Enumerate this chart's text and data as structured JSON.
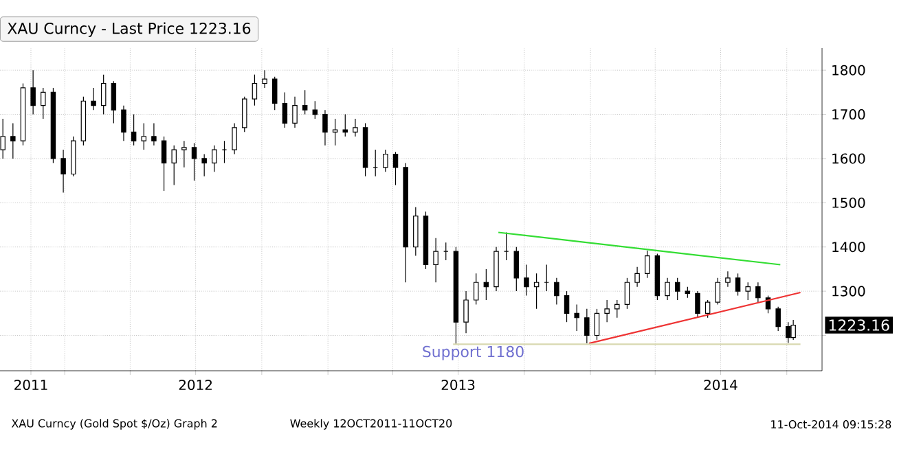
{
  "chart_data": {
    "type": "candlestick",
    "legend": "top left",
    "grid": true,
    "ylim": [
      1120,
      1850
    ],
    "yticks": [
      {
        "value": 1200,
        "label": null
      },
      1300,
      1400,
      1500,
      1600,
      1700,
      1800
    ],
    "xlim": [
      "2011-10-03",
      "2014-11-19"
    ],
    "xticks": [
      {
        "value": "2011-11-15",
        "label": "2011"
      },
      {
        "value": "2012-01-01",
        "label": null
      },
      {
        "value": "2012-04-01",
        "label": null
      },
      {
        "value": "2012-07-01",
        "label": "2012"
      },
      {
        "value": "2012-10-01",
        "label": null
      },
      {
        "value": "2013-01-01",
        "label": null
      },
      {
        "value": "2013-04-01",
        "label": null
      },
      {
        "value": "2013-07-01",
        "label": "2013"
      },
      {
        "value": "2013-10-01",
        "label": null
      },
      {
        "value": "2014-01-01",
        "label": null
      },
      {
        "value": "2014-04-01",
        "label": null
      },
      {
        "value": "2014-07-01",
        "label": "2014"
      },
      {
        "value": "2014-10-01",
        "label": null
      }
    ],
    "series": [
      {
        "name": "XAU Curncy - Last Price 1223.16",
        "color": "#000000",
        "x": [
          "2011-10-07",
          "2011-10-21",
          "2011-11-04",
          "2011-11-18",
          "2011-12-02",
          "2011-12-16",
          "2011-12-30",
          "2012-01-13",
          "2012-01-27",
          "2012-02-10",
          "2012-02-24",
          "2012-03-09",
          "2012-03-23",
          "2012-04-06",
          "2012-04-20",
          "2012-05-04",
          "2012-05-18",
          "2012-06-01",
          "2012-06-15",
          "2012-06-29",
          "2012-07-13",
          "2012-07-27",
          "2012-08-10",
          "2012-08-24",
          "2012-09-07",
          "2012-09-21",
          "2012-10-05",
          "2012-10-19",
          "2012-11-02",
          "2012-11-16",
          "2012-11-30",
          "2012-12-14",
          "2012-12-28",
          "2013-01-11",
          "2013-01-25",
          "2013-02-08",
          "2013-02-22",
          "2013-03-08",
          "2013-03-22",
          "2013-04-05",
          "2013-04-19",
          "2013-05-03",
          "2013-05-17",
          "2013-05-31",
          "2013-06-14",
          "2013-06-28",
          "2013-07-12",
          "2013-07-26",
          "2013-08-09",
          "2013-08-23",
          "2013-09-06",
          "2013-09-20",
          "2013-10-04",
          "2013-10-18",
          "2013-11-01",
          "2013-11-15",
          "2013-11-29",
          "2013-12-13",
          "2013-12-27",
          "2014-01-10",
          "2014-01-24",
          "2014-02-07",
          "2014-02-21",
          "2014-03-07",
          "2014-03-21",
          "2014-04-04",
          "2014-04-18",
          "2014-05-02",
          "2014-05-16",
          "2014-05-30",
          "2014-06-13",
          "2014-06-27",
          "2014-07-11",
          "2014-07-25",
          "2014-08-08",
          "2014-08-22",
          "2014-09-05",
          "2014-09-19",
          "2014-10-03",
          "2014-10-10"
        ],
        "ohlc": [
          [
            1620,
            1690,
            1600,
            1650
          ],
          [
            1650,
            1680,
            1600,
            1640
          ],
          [
            1640,
            1770,
            1630,
            1760
          ],
          [
            1760,
            1800,
            1700,
            1720
          ],
          [
            1720,
            1760,
            1690,
            1750
          ],
          [
            1750,
            1760,
            1590,
            1600
          ],
          [
            1600,
            1620,
            1523,
            1565
          ],
          [
            1565,
            1650,
            1560,
            1640
          ],
          [
            1640,
            1740,
            1630,
            1730
          ],
          [
            1730,
            1760,
            1710,
            1720
          ],
          [
            1720,
            1790,
            1700,
            1770
          ],
          [
            1770,
            1775,
            1680,
            1710
          ],
          [
            1710,
            1720,
            1640,
            1660
          ],
          [
            1660,
            1700,
            1630,
            1640
          ],
          [
            1640,
            1680,
            1620,
            1650
          ],
          [
            1650,
            1680,
            1630,
            1640
          ],
          [
            1640,
            1650,
            1527,
            1590
          ],
          [
            1590,
            1630,
            1540,
            1620
          ],
          [
            1620,
            1640,
            1580,
            1625
          ],
          [
            1625,
            1635,
            1550,
            1600
          ],
          [
            1600,
            1610,
            1560,
            1590
          ],
          [
            1590,
            1630,
            1570,
            1620
          ],
          [
            1620,
            1640,
            1590,
            1620
          ],
          [
            1620,
            1680,
            1610,
            1670
          ],
          [
            1670,
            1740,
            1660,
            1735
          ],
          [
            1735,
            1790,
            1720,
            1770
          ],
          [
            1770,
            1800,
            1760,
            1780
          ],
          [
            1780,
            1785,
            1710,
            1725
          ],
          [
            1725,
            1750,
            1670,
            1680
          ],
          [
            1680,
            1740,
            1670,
            1720
          ],
          [
            1720,
            1755,
            1700,
            1710
          ],
          [
            1710,
            1730,
            1690,
            1700
          ],
          [
            1700,
            1710,
            1630,
            1660
          ],
          [
            1660,
            1690,
            1630,
            1665
          ],
          [
            1665,
            1700,
            1650,
            1660
          ],
          [
            1660,
            1690,
            1650,
            1670
          ],
          [
            1670,
            1680,
            1560,
            1580
          ],
          [
            1580,
            1620,
            1560,
            1580
          ],
          [
            1580,
            1620,
            1570,
            1610
          ],
          [
            1610,
            1615,
            1540,
            1580
          ],
          [
            1580,
            1590,
            1320,
            1400
          ],
          [
            1400,
            1490,
            1380,
            1470
          ],
          [
            1470,
            1480,
            1350,
            1360
          ],
          [
            1360,
            1420,
            1320,
            1390
          ],
          [
            1390,
            1410,
            1370,
            1390
          ],
          [
            1390,
            1400,
            1180,
            1230
          ],
          [
            1230,
            1300,
            1205,
            1280
          ],
          [
            1280,
            1340,
            1270,
            1320
          ],
          [
            1320,
            1350,
            1280,
            1310
          ],
          [
            1310,
            1400,
            1300,
            1390
          ],
          [
            1390,
            1433,
            1370,
            1390
          ],
          [
            1390,
            1400,
            1300,
            1330
          ],
          [
            1330,
            1360,
            1290,
            1310
          ],
          [
            1310,
            1340,
            1260,
            1320
          ],
          [
            1320,
            1360,
            1300,
            1320
          ],
          [
            1320,
            1330,
            1270,
            1290
          ],
          [
            1290,
            1300,
            1230,
            1250
          ],
          [
            1250,
            1270,
            1210,
            1240
          ],
          [
            1240,
            1260,
            1182,
            1200
          ],
          [
            1200,
            1260,
            1190,
            1250
          ],
          [
            1250,
            1280,
            1230,
            1260
          ],
          [
            1260,
            1280,
            1240,
            1270
          ],
          [
            1270,
            1330,
            1260,
            1320
          ],
          [
            1320,
            1355,
            1310,
            1340
          ],
          [
            1340,
            1392,
            1330,
            1380
          ],
          [
            1380,
            1385,
            1280,
            1290
          ],
          [
            1290,
            1330,
            1280,
            1320
          ],
          [
            1320,
            1330,
            1280,
            1300
          ],
          [
            1300,
            1310,
            1285,
            1295
          ],
          [
            1295,
            1300,
            1240,
            1250
          ],
          [
            1250,
            1280,
            1240,
            1275
          ],
          [
            1275,
            1330,
            1270,
            1320
          ],
          [
            1320,
            1345,
            1310,
            1330
          ],
          [
            1330,
            1340,
            1290,
            1300
          ],
          [
            1300,
            1320,
            1280,
            1310
          ],
          [
            1310,
            1320,
            1275,
            1285
          ],
          [
            1285,
            1290,
            1250,
            1260
          ],
          [
            1260,
            1265,
            1210,
            1220
          ],
          [
            1220,
            1230,
            1183,
            1195
          ],
          [
            1195,
            1235,
            1190,
            1223.16
          ]
        ]
      },
      {
        "type": "line",
        "color": "#33dd33",
        "x": [
          "2013-08-26",
          "2014-09-22"
        ],
        "values": [
          1433,
          1360
        ]
      },
      {
        "type": "line",
        "color": "#ee3333",
        "x": [
          "2013-12-30",
          "2014-10-20"
        ],
        "values": [
          1182,
          1297
        ]
      },
      {
        "type": "line",
        "color": "#d8d8b0",
        "x": [
          "2013-06-24",
          "2014-10-20"
        ],
        "values": [
          1180,
          1180
        ]
      }
    ],
    "annotations": [
      {
        "text": "Support 1180",
        "x": "2013-07-22",
        "y": 1180
      },
      {
        "text": "1223.16",
        "x": "2014-10-10",
        "y": 1223.16
      },
      "XAU Curncy (Gold Spot  $/Oz) Graph 2",
      "Weekly 12OCT2011-11OCT20",
      "11-Oct-2014 09:15:28"
    ]
  }
}
